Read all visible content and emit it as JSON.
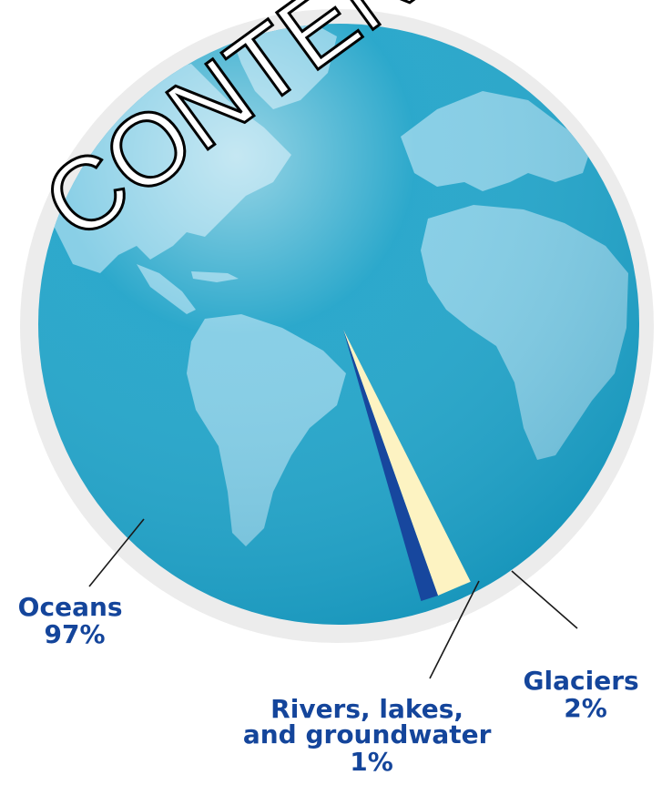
{
  "chart_data": {
    "type": "pie",
    "title": "",
    "slices": [
      {
        "label_lines": [
          "Oceans",
          "97%"
        ],
        "value": 97,
        "color": "#1aa1c7"
      },
      {
        "label_lines": [
          "Glaciers",
          "2%"
        ],
        "value": 2,
        "color": "#fdf3c2"
      },
      {
        "label_lines": [
          "Rivers, lakes,",
          "and groundwater",
          "1%"
        ],
        "value": 1,
        "color": "#17479e"
      }
    ]
  },
  "colors": {
    "ocean": "#1aa1c7",
    "land": "#7fcbe4",
    "rim": "#ececec",
    "label": "#14459b",
    "leader": "#1a1a1a"
  },
  "watermark": "CONTENT"
}
